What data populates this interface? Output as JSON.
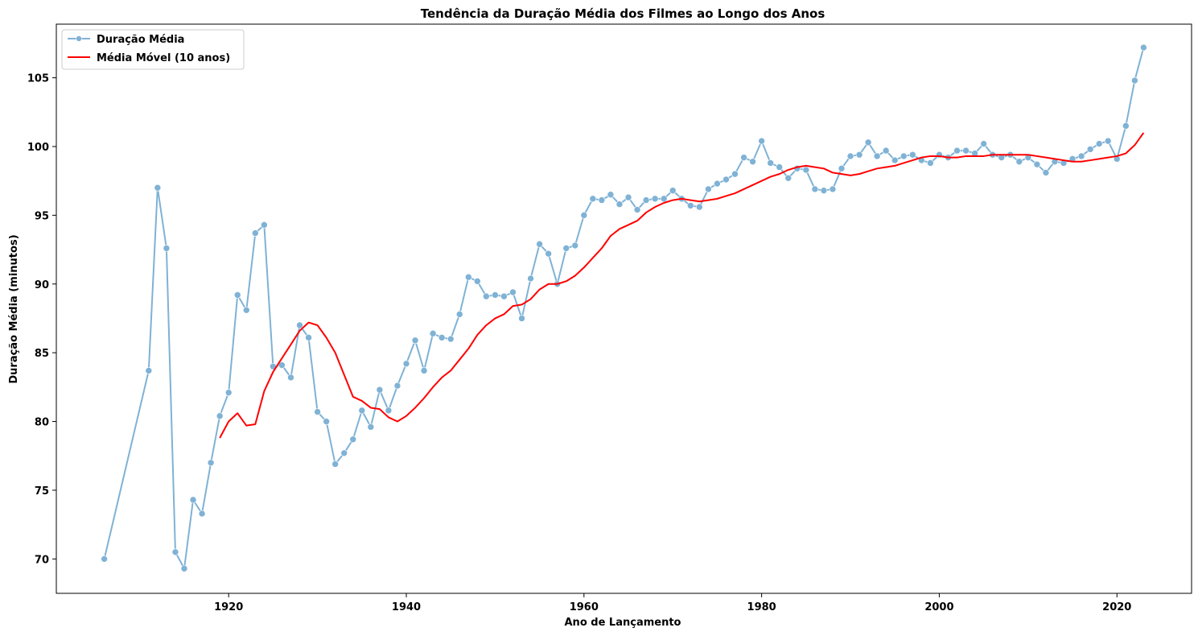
{
  "chart_data": {
    "type": "line",
    "title": "Tendência da Duração Média dos Filmes ao Longo dos Anos",
    "xlabel": "Ano de Lançamento",
    "ylabel": "Duração Média (minutos)",
    "xlim": [
      1900.6,
      2028.4
    ],
    "ylim": [
      67.5,
      108.9
    ],
    "xticks": [
      1920,
      1940,
      1960,
      1980,
      2000,
      2020
    ],
    "yticks": [
      70,
      75,
      80,
      85,
      90,
      95,
      100,
      105
    ],
    "grid": false,
    "legend_position": "top-left",
    "series": [
      {
        "name": "Duração Média",
        "color": "#7fb2d5",
        "marker": "circle",
        "x": [
          1906,
          1911,
          1912,
          1913,
          1914,
          1915,
          1916,
          1917,
          1918,
          1919,
          1920,
          1921,
          1922,
          1923,
          1924,
          1925,
          1926,
          1927,
          1928,
          1929,
          1930,
          1931,
          1932,
          1933,
          1934,
          1935,
          1936,
          1937,
          1938,
          1939,
          1940,
          1941,
          1942,
          1943,
          1944,
          1945,
          1946,
          1947,
          1948,
          1949,
          1950,
          1951,
          1952,
          1953,
          1954,
          1955,
          1956,
          1957,
          1958,
          1959,
          1960,
          1961,
          1962,
          1963,
          1964,
          1965,
          1966,
          1967,
          1968,
          1969,
          1970,
          1971,
          1972,
          1973,
          1974,
          1975,
          1976,
          1977,
          1978,
          1979,
          1980,
          1981,
          1982,
          1983,
          1984,
          1985,
          1986,
          1987,
          1988,
          1989,
          1990,
          1991,
          1992,
          1993,
          1994,
          1995,
          1996,
          1997,
          1998,
          1999,
          2000,
          2001,
          2002,
          2003,
          2004,
          2005,
          2006,
          2007,
          2008,
          2009,
          2010,
          2011,
          2012,
          2013,
          2014,
          2015,
          2016,
          2017,
          2018,
          2019,
          2020,
          2021,
          2022,
          2023
        ],
        "y": [
          70.0,
          83.7,
          97.0,
          92.6,
          70.5,
          69.3,
          74.3,
          73.3,
          77.0,
          80.4,
          82.1,
          89.2,
          88.1,
          93.7,
          94.3,
          84.0,
          84.1,
          83.2,
          87.0,
          86.1,
          80.7,
          80.0,
          76.9,
          77.7,
          78.7,
          80.8,
          79.6,
          82.3,
          80.8,
          82.6,
          84.2,
          85.9,
          83.7,
          86.4,
          86.1,
          86.0,
          87.8,
          90.5,
          90.2,
          89.1,
          89.2,
          89.1,
          89.4,
          87.5,
          90.4,
          92.9,
          92.2,
          90.0,
          92.6,
          92.8,
          95.0,
          96.2,
          96.1,
          96.5,
          95.8,
          96.3,
          95.4,
          96.1,
          96.2,
          96.2,
          96.8,
          96.2,
          95.7,
          95.6,
          96.9,
          97.3,
          97.6,
          98.0,
          99.2,
          98.9,
          100.4,
          98.8,
          98.5,
          97.7,
          98.4,
          98.3,
          96.9,
          96.8,
          96.9,
          98.4,
          99.3,
          99.4,
          100.3,
          99.3,
          99.7,
          99.0,
          99.3,
          99.4,
          99.0,
          98.8,
          99.4,
          99.2,
          99.7,
          99.7,
          99.5,
          100.2,
          99.4,
          99.2,
          99.4,
          98.9,
          99.2,
          98.7,
          98.1,
          98.9,
          98.8,
          99.1,
          99.3,
          99.8,
          100.2,
          100.4,
          99.1,
          101.5,
          104.8,
          107.2
        ]
      },
      {
        "name": "Média Móvel (10 anos)",
        "color": "#ff0000",
        "x": [
          1919,
          1920,
          1921,
          1922,
          1923,
          1924,
          1925,
          1926,
          1927,
          1928,
          1929,
          1930,
          1931,
          1932,
          1933,
          1934,
          1935,
          1936,
          1937,
          1938,
          1939,
          1940,
          1941,
          1942,
          1943,
          1944,
          1945,
          1946,
          1947,
          1948,
          1949,
          1950,
          1951,
          1952,
          1953,
          1954,
          1955,
          1956,
          1957,
          1958,
          1959,
          1960,
          1961,
          1962,
          1963,
          1964,
          1965,
          1966,
          1967,
          1968,
          1969,
          1970,
          1971,
          1972,
          1973,
          1974,
          1975,
          1976,
          1977,
          1978,
          1979,
          1980,
          1981,
          1982,
          1983,
          1984,
          1985,
          1986,
          1987,
          1988,
          1989,
          1990,
          1991,
          1992,
          1993,
          1994,
          1995,
          1996,
          1997,
          1998,
          1999,
          2000,
          2001,
          2002,
          2003,
          2004,
          2005,
          2006,
          2007,
          2008,
          2009,
          2010,
          2011,
          2012,
          2013,
          2014,
          2015,
          2016,
          2017,
          2018,
          2019,
          2020,
          2021,
          2022,
          2023
        ],
        "y": [
          78.8,
          80.0,
          80.6,
          79.7,
          79.8,
          82.2,
          83.6,
          84.6,
          85.6,
          86.6,
          87.2,
          87.0,
          86.1,
          85.0,
          83.4,
          81.8,
          81.5,
          81.0,
          80.9,
          80.3,
          80.0,
          80.4,
          81.0,
          81.7,
          82.5,
          83.2,
          83.7,
          84.5,
          85.3,
          86.3,
          87.0,
          87.5,
          87.8,
          88.4,
          88.5,
          88.9,
          89.6,
          90.0,
          90.0,
          90.2,
          90.6,
          91.2,
          91.9,
          92.6,
          93.5,
          94.0,
          94.3,
          94.6,
          95.2,
          95.6,
          95.9,
          96.1,
          96.2,
          96.1,
          96.0,
          96.1,
          96.2,
          96.4,
          96.6,
          96.9,
          97.2,
          97.5,
          97.8,
          98.0,
          98.3,
          98.5,
          98.6,
          98.5,
          98.4,
          98.1,
          98.0,
          97.9,
          98.0,
          98.2,
          98.4,
          98.5,
          98.6,
          98.8,
          99.0,
          99.2,
          99.3,
          99.3,
          99.2,
          99.2,
          99.3,
          99.3,
          99.3,
          99.4,
          99.4,
          99.4,
          99.4,
          99.4,
          99.3,
          99.2,
          99.1,
          99.0,
          98.9,
          98.9,
          99.0,
          99.1,
          99.2,
          99.3,
          99.5,
          100.1,
          101.0
        ]
      }
    ]
  }
}
